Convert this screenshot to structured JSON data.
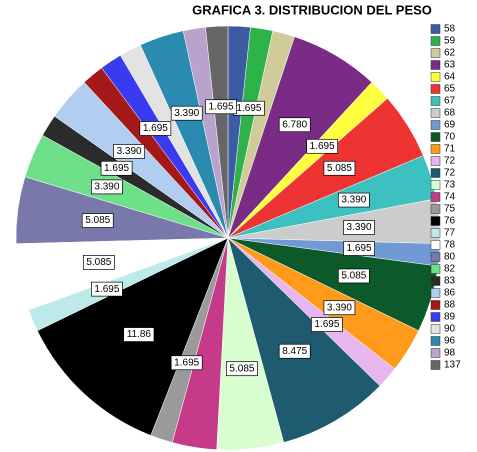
{
  "chart_data": {
    "type": "pie",
    "title": "GRAFICA 3. DISTRIBUCION DEL PESO",
    "categories": [
      "58",
      "59",
      "62",
      "63",
      "64",
      "65",
      "67",
      "68",
      "69",
      "70",
      "71",
      "72",
      "72",
      "73",
      "74",
      "75",
      "76",
      "77",
      "78",
      "80",
      "82",
      "83",
      "86",
      "88",
      "89",
      "90",
      "96",
      "98",
      "137"
    ],
    "values": [
      1.695,
      1.695,
      1.695,
      6.78,
      1.695,
      5.085,
      3.39,
      3.39,
      1.695,
      5.085,
      3.39,
      1.695,
      8.475,
      5.085,
      3.39,
      1.695,
      11.86,
      1.695,
      5.085,
      5.085,
      3.39,
      1.695,
      3.39,
      1.695,
      1.695,
      1.695,
      3.39,
      1.695,
      1.695
    ],
    "value_labels": [
      null,
      "1.695",
      null,
      "6.780",
      "1.695",
      "5.085",
      "3.390",
      "3.390",
      "1.695",
      "5.085",
      "3.390",
      "1.695",
      "8.475",
      "5.085",
      null,
      "1.695",
      "11.86",
      "1.695",
      "5.085",
      "5.085",
      "3.390",
      "1.695",
      "3.390",
      null,
      "1.695",
      null,
      "3.390",
      null,
      "1.695"
    ],
    "colors": [
      "#3b5ba5",
      "#2eb34a",
      "#cfcc9a",
      "#7a2b85",
      "#ffff40",
      "#ee3333",
      "#3cc0c0",
      "#cccccc",
      "#6f9ad6",
      "#0c5a2a",
      "#ff9a1a",
      "#e8b6ef",
      "#1f5b70",
      "#d9ffd1",
      "#c63a8a",
      "#9a9a9a",
      "#000000",
      "#bde9ea",
      "#ffffff",
      "#7878aa",
      "#6ee08a",
      "#2b2b2b",
      "#b1cdf0",
      "#a51818",
      "#3a3af0",
      "#e3e3e3",
      "#2a8ab0",
      "#b9a2cc",
      "#666666"
    ]
  }
}
